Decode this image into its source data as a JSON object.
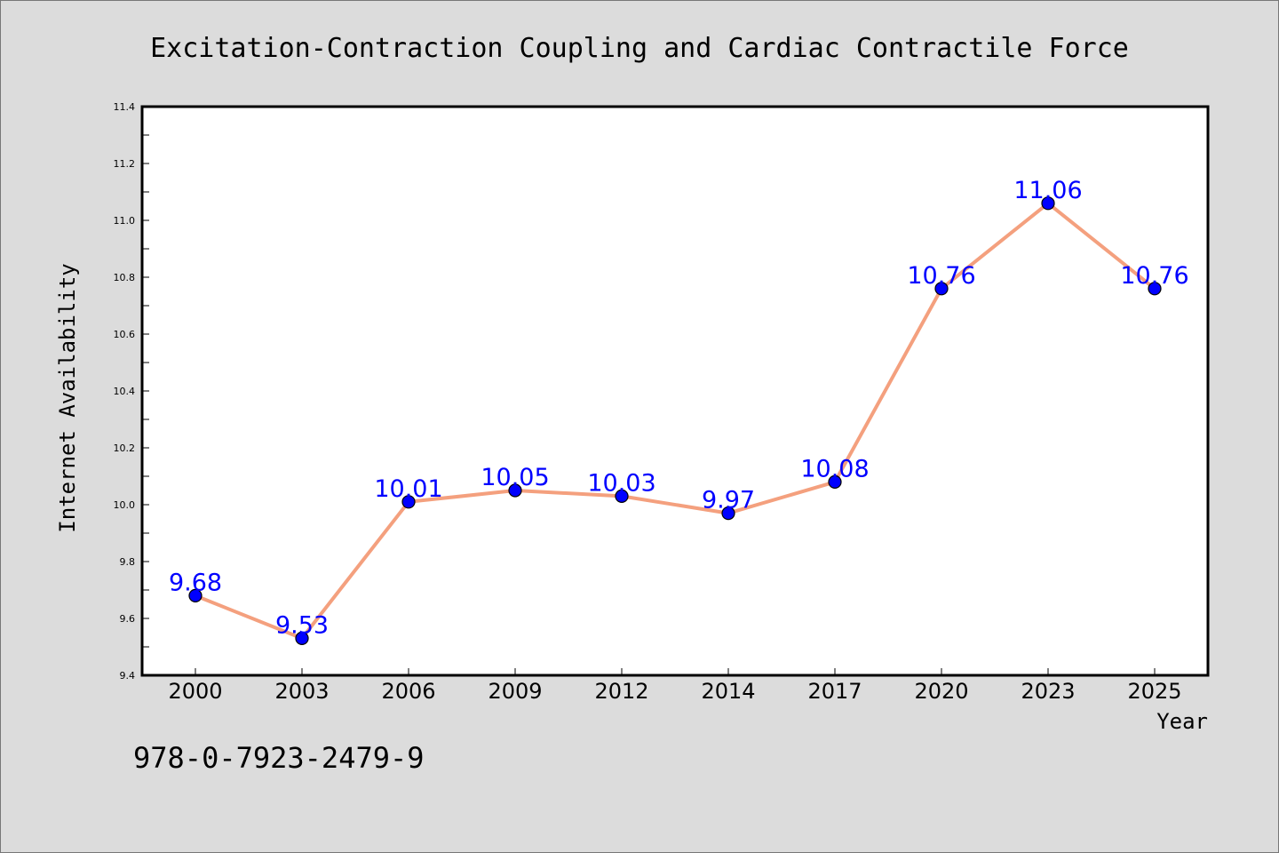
{
  "chart_data": {
    "type": "line",
    "title": "Excitation-Contraction Coupling and Cardiac Contractile Force",
    "xlabel": "Year",
    "ylabel": "Internet Availability",
    "categories": [
      "2000",
      "2003",
      "2006",
      "2009",
      "2012",
      "2014",
      "2017",
      "2020",
      "2023",
      "2025"
    ],
    "series": [
      {
        "values": [
          9.68,
          9.53,
          10.01,
          10.05,
          10.03,
          9.97,
          10.08,
          10.76,
          11.06,
          10.76
        ],
        "labels": [
          "9.68",
          "9.53",
          "10.01",
          "10.05",
          "10.03",
          "9.97",
          "10.08",
          "10.76",
          "11.06",
          "10.76"
        ]
      }
    ],
    "ylim": [
      9.4,
      11.4
    ],
    "yticks": [
      "9.4",
      "9.6",
      "9.8",
      "10.0",
      "10.2",
      "10.4",
      "10.6",
      "10.8",
      "11.0",
      "11.2",
      "11.4"
    ],
    "grid": false,
    "legend": "none",
    "colors": {
      "line": "#f4a07e",
      "marker": "#0000ff",
      "marker_edge": "#000000",
      "data_label": "#0000ff",
      "background": "#dcdcdc",
      "plot_background": "#ffffff"
    },
    "annotation": "978-0-7923-2479-9"
  }
}
